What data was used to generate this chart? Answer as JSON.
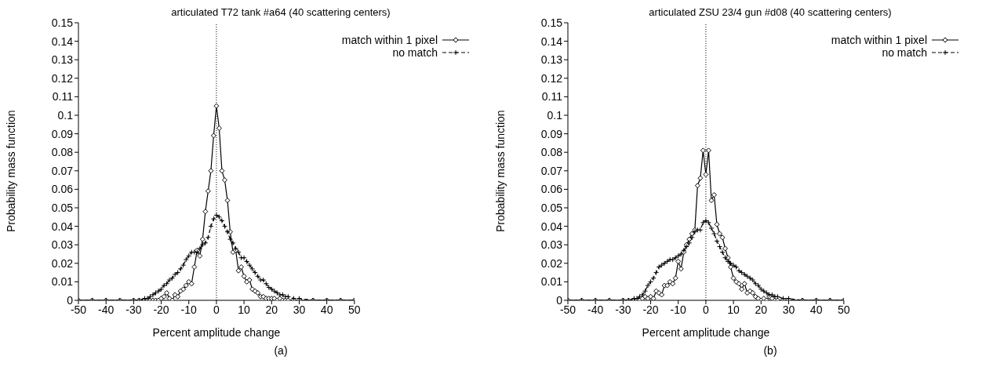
{
  "chart_data": [
    {
      "type": "line",
      "title": "articulated T72 tank #a64 (40 scattering centers)",
      "xlabel": "Percent amplitude change",
      "ylabel": "Probability mass function",
      "annotations": [
        "(a)"
      ],
      "x": [
        -50,
        -45,
        -40,
        -35,
        -30,
        -28,
        -26,
        -25,
        -24,
        -23,
        -22,
        -21,
        -20,
        -19,
        -18,
        -17,
        -16,
        -15,
        -14,
        -13,
        -12,
        -11,
        -10,
        -9,
        -8,
        -7,
        -6,
        -5,
        -4,
        -3,
        -2,
        -1,
        0,
        1,
        2,
        3,
        4,
        5,
        6,
        7,
        8,
        9,
        10,
        11,
        12,
        13,
        14,
        15,
        16,
        17,
        18,
        19,
        20,
        21,
        22,
        23,
        24,
        25,
        26,
        28,
        30,
        35,
        40,
        45,
        50
      ],
      "series": [
        {
          "name": "match within 1 pixel",
          "color": "#000000",
          "marker": "diamond",
          "line_style": "solid",
          "values": [
            0,
            0,
            0,
            0,
            0,
            0,
            0,
            0,
            0,
            0,
            0,
            0,
            0.001,
            0.002,
            0.004,
            0.001,
            0,
            0.003,
            0.002,
            0.005,
            0.006,
            0.008,
            0.01,
            0.009,
            0.018,
            0.027,
            0.024,
            0.033,
            0.048,
            0.059,
            0.07,
            0.089,
            0.105,
            0.093,
            0.07,
            0.065,
            0.054,
            0.037,
            0.026,
            0.027,
            0.016,
            0.018,
            0.013,
            0.01,
            0.011,
            0.006,
            0.005,
            0.004,
            0.002,
            0.002,
            0.001,
            0.001,
            0.001,
            0.001,
            0,
            0.001,
            0,
            0,
            0,
            0,
            0,
            0,
            0,
            0,
            0
          ]
        },
        {
          "name": "no match",
          "color": "#000000",
          "marker": "cross",
          "line_style": "dashed",
          "values": [
            0,
            0,
            0,
            0,
            0,
            0,
            0.001,
            0.001,
            0.002,
            0.003,
            0.004,
            0.005,
            0.006,
            0.008,
            0.009,
            0.011,
            0.012,
            0.014,
            0.015,
            0.017,
            0.019,
            0.022,
            0.024,
            0.026,
            0.026,
            0.026,
            0.028,
            0.03,
            0.031,
            0.034,
            0.04,
            0.044,
            0.046,
            0.045,
            0.043,
            0.04,
            0.037,
            0.033,
            0.031,
            0.028,
            0.026,
            0.023,
            0.023,
            0.021,
            0.019,
            0.017,
            0.015,
            0.013,
            0.011,
            0.011,
            0.009,
            0.007,
            0.006,
            0.005,
            0.004,
            0.003,
            0.003,
            0.002,
            0.002,
            0.001,
            0.001,
            0,
            0,
            0,
            0
          ]
        }
      ],
      "xlim": [
        -50,
        50
      ],
      "xticks": [
        -50,
        -40,
        -30,
        -20,
        -10,
        0,
        10,
        20,
        30,
        40,
        50
      ],
      "ylim": [
        0,
        0.15
      ],
      "yticks": [
        0,
        0.01,
        0.02,
        0.03,
        0.04,
        0.05,
        0.06,
        0.07,
        0.08,
        0.09,
        0.1,
        0.11,
        0.12,
        0.13,
        0.14,
        0.15
      ],
      "ref_lines": [
        {
          "axis": "x",
          "value": 0,
          "line_style": "dotted",
          "color": "#000000"
        }
      ],
      "grid": false,
      "legend": "top right"
    },
    {
      "type": "line",
      "title": "articulated ZSU 23/4 gun #d08 (40 scattering centers)",
      "xlabel": "Percent amplitude change",
      "ylabel": "Probability mass function",
      "annotations": [
        "(b)"
      ],
      "x": [
        -50,
        -45,
        -40,
        -35,
        -30,
        -28,
        -26,
        -25,
        -24,
        -23,
        -22,
        -21,
        -20,
        -19,
        -18,
        -17,
        -16,
        -15,
        -14,
        -13,
        -12,
        -11,
        -10,
        -9,
        -8,
        -7,
        -6,
        -5,
        -4,
        -3,
        -2,
        -1,
        0,
        1,
        2,
        3,
        4,
        5,
        6,
        7,
        8,
        9,
        10,
        11,
        12,
        13,
        14,
        15,
        16,
        17,
        18,
        19,
        20,
        21,
        22,
        23,
        24,
        25,
        26,
        28,
        30,
        35,
        40,
        45,
        50
      ],
      "series": [
        {
          "name": "match within 1 pixel",
          "color": "#000000",
          "marker": "diamond",
          "line_style": "solid",
          "values": [
            0,
            0,
            0,
            0,
            0,
            0,
            0,
            0,
            0,
            0.001,
            0.002,
            0.001,
            0.002,
            0.001,
            0.005,
            0.004,
            0.003,
            0.008,
            0.008,
            0.01,
            0.009,
            0.012,
            0.021,
            0.017,
            0.026,
            0.03,
            0.033,
            0.036,
            0.038,
            0.062,
            0.066,
            0.081,
            0.068,
            0.081,
            0.054,
            0.057,
            0.041,
            0.036,
            0.034,
            0.028,
            0.023,
            0.018,
            0.012,
            0.01,
            0.009,
            0.006,
            0.009,
            0.004,
            0.005,
            0.004,
            0.002,
            0.001,
            0,
            0.001,
            0,
            0.002,
            0.001,
            0,
            0,
            0,
            0,
            0,
            0,
            0,
            0
          ]
        },
        {
          "name": "no match",
          "color": "#000000",
          "marker": "cross",
          "line_style": "dashed",
          "values": [
            0,
            0,
            0,
            0,
            0,
            0,
            0.001,
            0.001,
            0.002,
            0.003,
            0.005,
            0.008,
            0.01,
            0.012,
            0.015,
            0.018,
            0.019,
            0.02,
            0.021,
            0.022,
            0.022,
            0.023,
            0.024,
            0.025,
            0.027,
            0.029,
            0.031,
            0.034,
            0.037,
            0.038,
            0.038,
            0.042,
            0.043,
            0.042,
            0.039,
            0.036,
            0.032,
            0.029,
            0.026,
            0.023,
            0.021,
            0.02,
            0.019,
            0.018,
            0.016,
            0.015,
            0.014,
            0.013,
            0.012,
            0.011,
            0.009,
            0.008,
            0.006,
            0.005,
            0.004,
            0.003,
            0.003,
            0.002,
            0.002,
            0.001,
            0.001,
            0,
            0,
            0,
            0
          ]
        }
      ],
      "xlim": [
        -50,
        50
      ],
      "xticks": [
        -50,
        -40,
        -30,
        -20,
        -10,
        0,
        10,
        20,
        30,
        40,
        50
      ],
      "ylim": [
        0,
        0.15
      ],
      "yticks": [
        0,
        0.01,
        0.02,
        0.03,
        0.04,
        0.05,
        0.06,
        0.07,
        0.08,
        0.09,
        0.1,
        0.11,
        0.12,
        0.13,
        0.14,
        0.15
      ],
      "ref_lines": [
        {
          "axis": "x",
          "value": 0,
          "line_style": "dotted",
          "color": "#000000"
        }
      ],
      "grid": false,
      "legend": "top right"
    }
  ]
}
